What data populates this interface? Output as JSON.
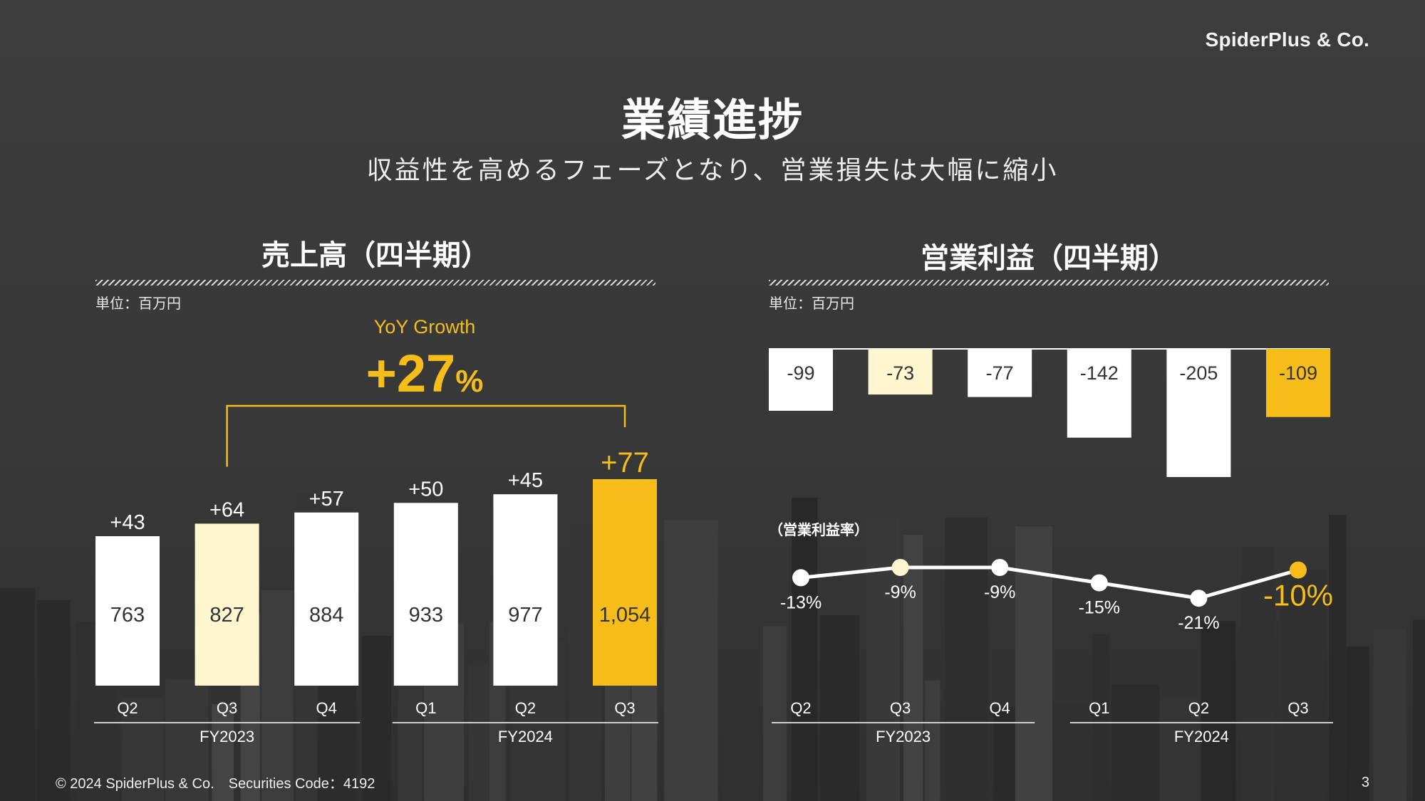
{
  "brand": "SpiderPlus & Co.",
  "title": "業績進捗",
  "subtitle": "収益性を高めるフェーズとなり、営業損失は大幅に縮小",
  "footer": {
    "copyright": "© 2024 SpiderPlus & Co.　Securities Code：4192",
    "page": "3"
  },
  "colors": {
    "highlight": "#f6bd1a",
    "highlight_light": "#fdf6cf",
    "bar": "#ffffff"
  },
  "chart_data": [
    {
      "type": "bar",
      "title": "売上高（四半期）",
      "unit_label": "単位：百万円",
      "categories": [
        "Q2",
        "Q3",
        "Q4",
        "Q1",
        "Q2",
        "Q3"
      ],
      "groups": [
        {
          "label": "FY2023",
          "count": 3
        },
        {
          "label": "FY2024",
          "count": 3
        }
      ],
      "values": [
        763,
        827,
        884,
        933,
        977,
        1054
      ],
      "value_labels": [
        "763",
        "827",
        "884",
        "933",
        "977",
        "1,054"
      ],
      "increments": [
        "+43",
        "+64",
        "+57",
        "+50",
        "+45",
        "+77"
      ],
      "highlight": [
        "none",
        "light",
        "none",
        "none",
        "none",
        "strong"
      ],
      "ylim": [
        0,
        1054
      ],
      "annotation": {
        "label": "YoY Growth",
        "value": "+27",
        "unit": "%",
        "from_index": 1,
        "to_index": 5
      }
    },
    {
      "type": "bar",
      "title": "営業利益（四半期）",
      "unit_label": "単位：百万円",
      "categories": [
        "Q2",
        "Q3",
        "Q4",
        "Q1",
        "Q2",
        "Q3"
      ],
      "groups": [
        {
          "label": "FY2023",
          "count": 3
        },
        {
          "label": "FY2024",
          "count": 3
        }
      ],
      "values": [
        -99,
        -73,
        -77,
        -142,
        -205,
        -109
      ],
      "value_labels": [
        "-99",
        "-73",
        "-77",
        "-142",
        "-205",
        "-109"
      ],
      "highlight": [
        "none",
        "light",
        "none",
        "none",
        "none",
        "strong"
      ],
      "ylim": [
        -205,
        0
      ]
    },
    {
      "type": "line",
      "title": "（営業利益率）",
      "categories": [
        "Q2",
        "Q3",
        "Q4",
        "Q1",
        "Q2",
        "Q3"
      ],
      "values": [
        -13,
        -9,
        -9,
        -15,
        -21,
        -10
      ],
      "value_labels": [
        "-13%",
        "-9%",
        "-9%",
        "-15%",
        "-21%",
        "-10%"
      ],
      "highlight": [
        "none",
        "light",
        "none",
        "none",
        "none",
        "strong"
      ]
    }
  ]
}
